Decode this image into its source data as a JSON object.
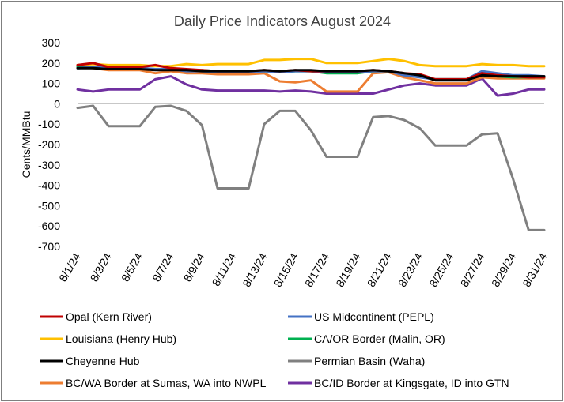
{
  "chart_data": {
    "type": "line",
    "title": "Daily Price Indicators August 2024",
    "xlabel": "",
    "ylabel": "Cents/MMBtu",
    "ylim": [
      -700,
      300
    ],
    "yticks": [
      300,
      200,
      100,
      0,
      -100,
      -200,
      -300,
      -400,
      -500,
      -600,
      -700
    ],
    "grid": false,
    "legend_position": "bottom",
    "x": [
      "8/1/24",
      "8/2/24",
      "8/3/24",
      "8/4/24",
      "8/5/24",
      "8/6/24",
      "8/7/24",
      "8/8/24",
      "8/9/24",
      "8/10/24",
      "8/11/24",
      "8/12/24",
      "8/13/24",
      "8/14/24",
      "8/15/24",
      "8/16/24",
      "8/17/24",
      "8/18/24",
      "8/19/24",
      "8/20/24",
      "8/21/24",
      "8/22/24",
      "8/23/24",
      "8/24/24",
      "8/25/24",
      "8/26/24",
      "8/27/24",
      "8/28/24",
      "8/29/24",
      "8/30/24",
      "8/31/24"
    ],
    "x_tick_labels": [
      "8/1/24",
      "8/3/24",
      "8/5/24",
      "8/7/24",
      "8/9/24",
      "8/11/24",
      "8/13/24",
      "8/15/24",
      "8/17/24",
      "8/19/24",
      "8/21/24",
      "8/23/24",
      "8/25/24",
      "8/27/24",
      "8/29/24",
      "8/31/24"
    ],
    "series": [
      {
        "name": "Opal (Kern River)",
        "color": "#c00000",
        "values": [
          190,
          200,
          180,
          180,
          180,
          190,
          175,
          170,
          165,
          160,
          160,
          160,
          165,
          160,
          165,
          160,
          160,
          160,
          160,
          165,
          160,
          150,
          145,
          120,
          120,
          120,
          150,
          140,
          135,
          130,
          130
        ]
      },
      {
        "name": "US Midcontinent (PEPL)",
        "color": "#4472c4",
        "values": [
          175,
          180,
          175,
          175,
          175,
          170,
          170,
          160,
          160,
          155,
          155,
          155,
          160,
          155,
          160,
          160,
          155,
          155,
          155,
          160,
          160,
          140,
          130,
          120,
          120,
          120,
          160,
          150,
          140,
          140,
          135
        ]
      },
      {
        "name": "Louisiana (Henry Hub)",
        "color": "#ffc000",
        "values": [
          190,
          195,
          190,
          190,
          190,
          185,
          185,
          195,
          190,
          195,
          195,
          195,
          215,
          215,
          220,
          220,
          200,
          200,
          200,
          210,
          220,
          210,
          190,
          185,
          185,
          185,
          195,
          190,
          190,
          185,
          185
        ]
      },
      {
        "name": "CA/OR Border (Malin, OR)",
        "color": "#00b050",
        "values": [
          180,
          180,
          175,
          175,
          175,
          170,
          170,
          165,
          165,
          160,
          160,
          160,
          160,
          155,
          160,
          160,
          150,
          150,
          150,
          160,
          160,
          145,
          135,
          120,
          120,
          120,
          140,
          135,
          130,
          130,
          130
        ]
      },
      {
        "name": "Cheyenne Hub",
        "color": "#000000",
        "values": [
          175,
          175,
          170,
          170,
          170,
          165,
          165,
          165,
          160,
          160,
          160,
          160,
          165,
          160,
          165,
          165,
          160,
          160,
          160,
          165,
          160,
          150,
          140,
          115,
          115,
          115,
          140,
          135,
          135,
          135,
          135
        ]
      },
      {
        "name": "Permian Basin (Waha)",
        "color": "#808080",
        "values": [
          -20,
          -10,
          -110,
          -110,
          -110,
          -15,
          -10,
          -35,
          -105,
          -415,
          -415,
          -415,
          -100,
          -35,
          -35,
          -130,
          -260,
          -260,
          -260,
          -65,
          -60,
          -80,
          -120,
          -205,
          -205,
          -205,
          -150,
          -145,
          -370,
          -620,
          -620
        ]
      },
      {
        "name": "BC/WA Border at Sumas, WA into NWPL",
        "color": "#ed7d31",
        "values": [
          180,
          175,
          165,
          165,
          165,
          150,
          160,
          150,
          150,
          145,
          145,
          145,
          150,
          110,
          105,
          115,
          60,
          60,
          60,
          150,
          155,
          130,
          115,
          100,
          100,
          100,
          130,
          125,
          125,
          125,
          125
        ]
      },
      {
        "name": "BC/ID Border at Kingsgate, ID into GTN",
        "color": "#7030a0",
        "values": [
          70,
          60,
          70,
          70,
          70,
          120,
          135,
          95,
          70,
          65,
          65,
          65,
          65,
          60,
          65,
          60,
          50,
          50,
          50,
          50,
          70,
          90,
          100,
          90,
          90,
          90,
          125,
          40,
          50,
          70,
          70
        ]
      }
    ]
  }
}
